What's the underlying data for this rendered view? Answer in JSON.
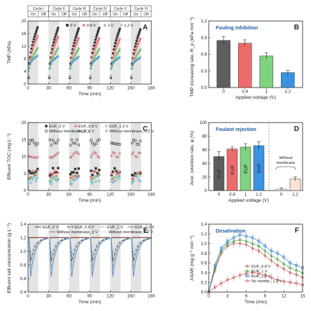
{
  "chart_data": [
    {
      "panel": "A",
      "type": "scatter",
      "xlabel": "Time (min)",
      "ylabel": "TMP (kPa)",
      "xlim": [
        0,
        180
      ],
      "ylim": [
        0,
        20
      ],
      "xticks": [
        0,
        30,
        60,
        90,
        120,
        150,
        180
      ],
      "yticks": [
        0,
        4,
        8,
        12,
        16,
        20
      ],
      "cycles": [
        "Cycle I",
        "Cycle II",
        "Cycle III",
        "Cycle IV",
        "Cycle V",
        "Cycle VI"
      ],
      "on_label": "On",
      "off_label": "Off",
      "series": [
        {
          "name": "0 V",
          "marker": "square",
          "color": "#333333",
          "end_values": [
            18,
            17.8,
            17.6,
            17.8,
            17.5,
            17.3
          ]
        },
        {
          "name": "0.8 V",
          "marker": "circle",
          "color": "#f07c76",
          "end_values": [
            15.2,
            15,
            14.6,
            14.5,
            14.2,
            14.3
          ]
        },
        {
          "name": "1 V",
          "marker": "triangle",
          "color": "#6dc46d",
          "end_values": [
            11.5,
            11.5,
            11.3,
            11.2,
            11,
            11
          ]
        },
        {
          "name": "1.2 V",
          "marker": "diamond",
          "color": "#4a9bd4",
          "end_values": [
            9,
            8.8,
            8.6,
            8.6,
            8.5,
            8.4
          ]
        }
      ]
    },
    {
      "panel": "B",
      "type": "bar",
      "title": "Fouling inhibition",
      "xlabel": "Applied voltage (V)",
      "ylabel": "TMP increasing rate, R_p (kPa mm⁻¹)",
      "categories": [
        "0",
        "0.8",
        "1",
        "1.2"
      ],
      "values": [
        0.85,
        0.8,
        0.57,
        0.27
      ],
      "errors": [
        0.07,
        0.06,
        0.06,
        0.04
      ],
      "colors": [
        "#5e5e5e",
        "#ee6b6b",
        "#7ed37e",
        "#3a92e0"
      ],
      "ylim": [
        0,
        1.2
      ],
      "yticks": [
        0,
        0.3,
        0.6,
        0.9,
        1.2
      ]
    },
    {
      "panel": "C",
      "type": "scatter",
      "xlabel": "Time (min)",
      "ylabel": "Effluent TOC (mg L⁻¹)",
      "xlim": [
        0,
        180
      ],
      "ylim": [
        0,
        20
      ],
      "xticks": [
        0,
        30,
        60,
        90,
        120,
        150,
        180
      ],
      "yticks": [
        0,
        5,
        10,
        15,
        20
      ],
      "series": [
        {
          "name": "EUF_0 V",
          "marker": "square",
          "color": "#333333",
          "level": 5.8
        },
        {
          "name": "EUF_0.8 V",
          "marker": "circle",
          "color": "#f07c76",
          "level": 5
        },
        {
          "name": "EUF_1 V",
          "marker": "triangle",
          "color": "#6dc46d",
          "level": 4.2
        },
        {
          "name": "EUF_1.2 V",
          "marker": "diamond",
          "color": "#4a9bd4",
          "level": 3.5
        },
        {
          "name": "Without membrane_0 V",
          "marker": "square",
          "color": "#333333",
          "level": 14.2
        },
        {
          "name": "Without membrane_1.2 V",
          "marker": "diamond",
          "color": "#c0504d",
          "level": 10.5
        }
      ]
    },
    {
      "panel": "D",
      "type": "bar",
      "title": "Foulant rejection",
      "xlabel": "Applied voltage (V)",
      "ylabel": "Aver. retention rate, φ (%)",
      "categories": [
        "0",
        "0.8",
        "1",
        "1.2",
        "0",
        "1.2"
      ],
      "values": [
        50,
        61,
        64,
        66,
        2,
        17
      ],
      "errors": [
        7,
        3,
        5,
        6,
        2,
        3
      ],
      "colors": [
        "#5e5e5e",
        "#ee6b6b",
        "#7ed37e",
        "#3a92e0",
        "#ffffff",
        "#fde3d2"
      ],
      "bar_labels": [
        "EUF",
        "EUF",
        "EUF",
        "EUF",
        "",
        ""
      ],
      "group_label": "Without membrane",
      "ylim": [
        0,
        100
      ],
      "yticks": [
        0,
        20,
        40,
        60,
        80,
        100
      ]
    },
    {
      "panel": "E",
      "type": "line",
      "xlabel": "Time (min)",
      "ylabel": "Effluent salt concentration (g L⁻¹)",
      "xlim": [
        0,
        180
      ],
      "ylim": [
        0.4,
        1.4
      ],
      "xticks": [
        0,
        30,
        60,
        90,
        120,
        150,
        180
      ],
      "yticks": [
        0.4,
        0.6,
        0.8,
        1.0,
        1.2,
        1.4
      ],
      "series": [
        {
          "name": "EUF_0 V",
          "color": "#222222",
          "dash": "",
          "min": 1.2
        },
        {
          "name": "EUF_0.8 V",
          "color": "#222222",
          "dash": "4,2",
          "min": 0.85
        },
        {
          "name": "EUF_1 V",
          "color": "#555555",
          "dash": "1,1.5",
          "min": 0.75
        },
        {
          "name": "EUF_1.2 V",
          "color": "#3a7fc4",
          "dash": "",
          "min": 0.62
        },
        {
          "name": "Without membrane_0 V",
          "color": "#c0504d",
          "dash": "",
          "min": 1.2
        },
        {
          "name": "Without membrane_1.2 V",
          "color": "#4a90d9",
          "dash": "1,1.5",
          "min": 0.95
        }
      ]
    },
    {
      "panel": "F",
      "type": "line",
      "title": "Desalination",
      "xlabel": "Time (min)",
      "ylabel": "ASAR (mg g⁻¹ min⁻¹)",
      "x": [
        0,
        1,
        2,
        3,
        4,
        5,
        6,
        7,
        8,
        9,
        10,
        11,
        12,
        13,
        14,
        15
      ],
      "xlim": [
        0,
        15
      ],
      "ylim": [
        0,
        1.4
      ],
      "xticks": [
        0,
        3,
        6,
        9,
        12,
        15
      ],
      "yticks": [
        0,
        0.2,
        0.4,
        0.6,
        0.8,
        1.0,
        1.2,
        1.4
      ],
      "series": [
        {
          "name": "EUF_0.8 V",
          "marker": "diamond",
          "color": "#c0504d",
          "values": [
            0,
            0.45,
            0.8,
            0.95,
            1.0,
            1.0,
            0.98,
            0.9,
            0.85,
            0.75,
            0.65,
            0.55,
            0.48,
            0.4,
            0.36,
            0.3
          ]
        },
        {
          "name": "EUF_1 V",
          "marker": "triangle",
          "color": "#3c9a3c",
          "values": [
            0,
            0.5,
            0.85,
            1.0,
            1.05,
            1.08,
            1.05,
            1.0,
            0.95,
            0.85,
            0.75,
            0.68,
            0.58,
            0.5,
            0.45,
            0.4
          ]
        },
        {
          "name": "EUF_1.2 V",
          "marker": "square",
          "color": "#2f7fc9",
          "values": [
            0,
            0.55,
            0.9,
            1.05,
            1.12,
            1.18,
            1.15,
            1.12,
            1.05,
            0.95,
            0.85,
            0.8,
            0.72,
            0.6,
            0.55,
            0.5
          ]
        },
        {
          "name": "No membr._1.2 V",
          "marker": "circle",
          "color": "#c0504d",
          "values": [
            0,
            0.1,
            0.18,
            0.25,
            0.3,
            0.35,
            0.38,
            0.4,
            0.38,
            0.35,
            0.3,
            0.25,
            0.22,
            0.2,
            0.18,
            0.15
          ]
        }
      ]
    }
  ]
}
